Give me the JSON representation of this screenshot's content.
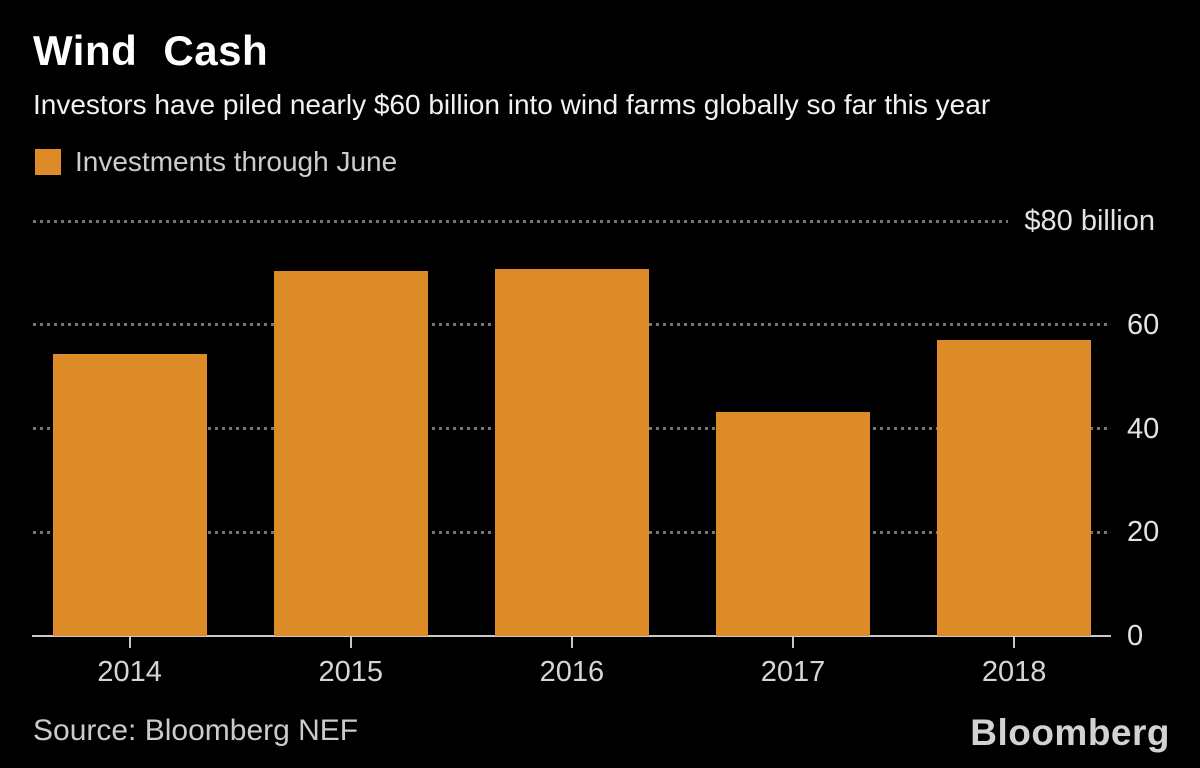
{
  "header": {
    "title": "Wind Cash",
    "subtitle": "Investors have piled nearly $60 billion into wind farms globally so far this year"
  },
  "legend": {
    "label": "Investments through June",
    "swatch_color": "#DD8A28"
  },
  "footer": {
    "source": "Source: Bloomberg NEF",
    "brand": "Bloomberg"
  },
  "colors": {
    "background": "#000000",
    "bar": "#DD8A28",
    "title_text": "#FFFFFF",
    "subtitle_text": "#F2F2F2",
    "legend_text": "#CCCCCC",
    "gridline": "#757575",
    "axis_line": "#C8C8C8",
    "y_label_text": "#E3E3E3",
    "x_label_text": "#D5D5D5",
    "source_text": "#CBCBCB",
    "brand_text": "#D2D2D2"
  },
  "chart_data": {
    "type": "bar",
    "title": "Wind Cash",
    "subtitle": "Investors have piled nearly $60 billion into wind farms globally so far this year",
    "series_name": "Investments through June",
    "categories": [
      "2014",
      "2015",
      "2016",
      "2017",
      "2018"
    ],
    "values": [
      54.3,
      70.4,
      70.8,
      43.2,
      57.1
    ],
    "unit": "billion USD",
    "xlabel": "",
    "ylabel": "",
    "ylim": [
      0,
      80
    ],
    "yticks": [
      {
        "value": 0,
        "label": "0"
      },
      {
        "value": 20,
        "label": "20"
      },
      {
        "value": 40,
        "label": "40"
      },
      {
        "value": 60,
        "label": "60"
      },
      {
        "value": 80,
        "label": "$80 billion"
      }
    ],
    "grid": "dotted-horizontal",
    "legend_position": "top-left",
    "bar_color": "#DD8A28",
    "source": "Source: Bloomberg NEF"
  }
}
